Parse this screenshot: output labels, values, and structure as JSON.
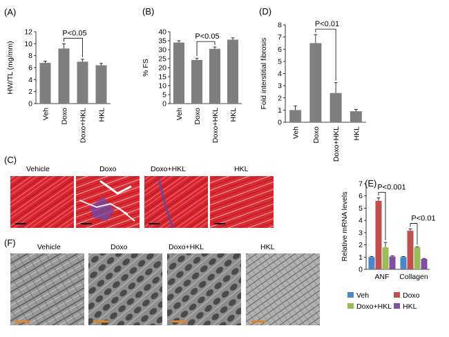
{
  "panels": {
    "A": "(A)",
    "B": "(B)",
    "C": "(C)",
    "D": "(D)",
    "E": "(E)",
    "F": "(F)"
  },
  "chart_data": [
    {
      "id": "A",
      "type": "bar",
      "categories": [
        "Veh",
        "Doxo",
        "Doxo+HKL",
        "HKL"
      ],
      "values": [
        6.8,
        9.2,
        7.0,
        6.4
      ],
      "errors": [
        0.3,
        0.8,
        0.4,
        0.3
      ],
      "ylabel": "HW/TL (mg/mm)",
      "ylim": [
        0,
        12
      ],
      "yticks": [
        0,
        2,
        4,
        6,
        8,
        10,
        12
      ],
      "significance": {
        "label": "P<0.05",
        "from": 1,
        "to": 2
      },
      "bar_color": "#7f7f7f"
    },
    {
      "id": "B",
      "type": "bar",
      "categories": [
        "Veh",
        "Doxo",
        "Doxo+HKL",
        "HKL"
      ],
      "values": [
        34.0,
        24.3,
        30.5,
        35.6
      ],
      "errors": [
        1.0,
        1.0,
        1.0,
        1.0
      ],
      "ylabel": "% FS",
      "ylim": [
        0,
        40
      ],
      "yticks": [
        0,
        5,
        10,
        15,
        20,
        25,
        30,
        35,
        40
      ],
      "significance": {
        "label": "P<0.05",
        "from": 1,
        "to": 2
      },
      "bar_color": "#7f7f7f"
    },
    {
      "id": "D",
      "type": "bar",
      "categories": [
        "Veh",
        "Doxo",
        "Doxo+HKL",
        "HKL"
      ],
      "values": [
        1.0,
        6.5,
        2.4,
        0.9
      ],
      "errors": [
        0.35,
        0.7,
        0.85,
        0.15
      ],
      "ylabel": "Fold interstitial fibrosis",
      "ylim": [
        0,
        8
      ],
      "yticks": [
        0,
        1,
        2,
        3,
        4,
        5,
        6,
        7,
        8
      ],
      "significance": {
        "label": "P<0.01",
        "from": 1,
        "to": 2
      },
      "bar_color": "#7f7f7f"
    },
    {
      "id": "E",
      "type": "bar",
      "categories": [
        "ANF",
        "Collagen"
      ],
      "series": [
        {
          "name": "Veh",
          "color": "#4a86c8",
          "values": [
            1.0,
            1.0
          ],
          "errors": [
            0.05,
            0.05
          ]
        },
        {
          "name": "Doxo",
          "color": "#c0504d",
          "values": [
            5.6,
            3.15
          ],
          "errors": [
            0.25,
            0.15
          ]
        },
        {
          "name": "Doxo+HKL",
          "color": "#9bbb59",
          "values": [
            1.8,
            1.8
          ],
          "errors": [
            0.4,
            0.05
          ]
        },
        {
          "name": "HKL",
          "color": "#7f4fa3",
          "values": [
            1.05,
            0.85
          ],
          "errors": [
            0.05,
            0.04
          ]
        }
      ],
      "ylabel": "Relative mRNA levels",
      "ylim": [
        0,
        7
      ],
      "yticks": [
        0,
        1,
        2,
        3,
        4,
        5,
        6,
        7
      ],
      "significance": [
        {
          "label": "P<0.001",
          "category": 0,
          "from": 1,
          "to": 2
        },
        {
          "label": "P<0.01",
          "category": 1,
          "from": 1,
          "to": 2
        }
      ],
      "legend": [
        "Veh",
        "Doxo+HKL",
        "Doxo",
        "HKL"
      ],
      "legend_position": "bottom"
    }
  ],
  "images_c": {
    "titles": [
      "Vehicle",
      "Doxo",
      "Doxo+HKL",
      "HKL"
    ]
  },
  "images_f": {
    "titles": [
      "Vehicle",
      "Doxo",
      "Doxo+HKL",
      "HKL"
    ]
  }
}
